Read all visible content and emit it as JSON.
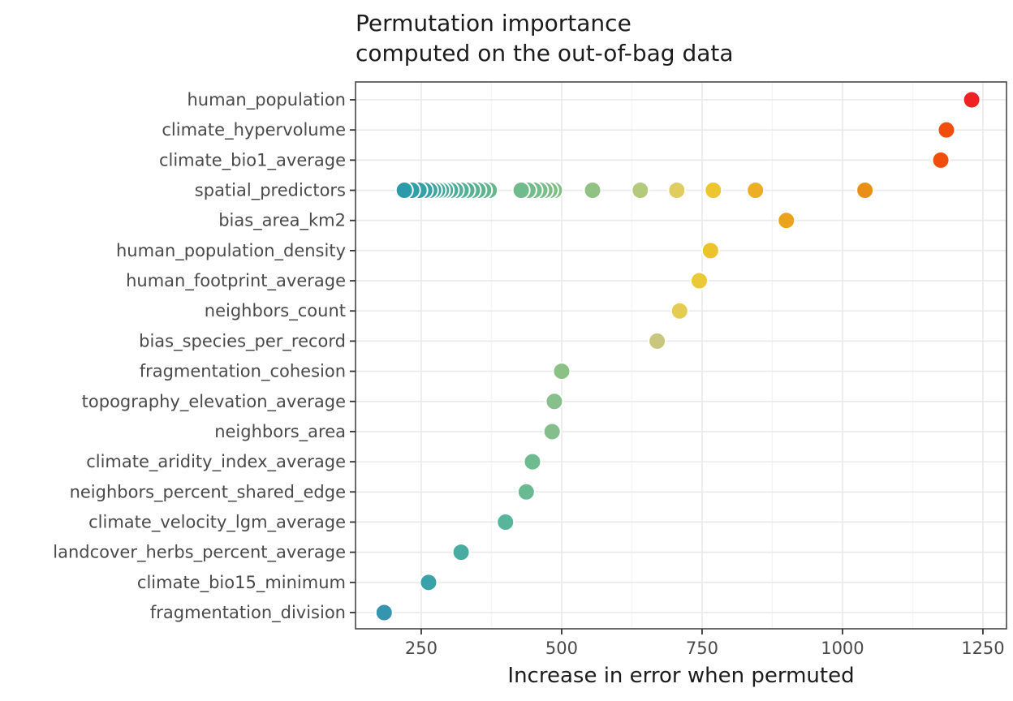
{
  "title": {
    "line1": "Permutation importance",
    "line2": "computed on the out-of-bag data"
  },
  "chart_data": {
    "type": "scatter",
    "subtype": "horizontal-dot-plot",
    "title": "Permutation importance computed on the out-of-bag data",
    "xlabel": "Increase in error when permuted",
    "ylabel": "",
    "xlim": [
      133,
      1292
    ],
    "x_major_ticks": [
      250,
      500,
      750,
      1000,
      1250
    ],
    "x_minor_gridlines": [
      375,
      625,
      875,
      1125
    ],
    "grid": "major-and-minor-vertical, major-horizontal",
    "legend": "none",
    "color_encoding": "importance value (teal = low, red = high)",
    "categories": [
      "human_population",
      "climate_hypervolume",
      "climate_bio1_average",
      "spatial_predictors",
      "bias_area_km2",
      "human_population_density",
      "human_footprint_average",
      "neighbors_count",
      "bias_species_per_record",
      "fragmentation_cohesion",
      "topography_elevation_average",
      "neighbors_area",
      "climate_aridity_index_average",
      "neighbors_percent_shared_edge",
      "climate_velocity_lgm_average",
      "landcover_herbs_percent_average",
      "climate_bio15_minimum",
      "fragmentation_division"
    ],
    "points": [
      {
        "category": "human_population",
        "x": 1230,
        "color": "#ee2123"
      },
      {
        "category": "climate_hypervolume",
        "x": 1185,
        "color": "#f14e0e"
      },
      {
        "category": "climate_bio1_average",
        "x": 1175,
        "color": "#f14e0e"
      },
      {
        "category": "spatial_predictors",
        "x": 1040,
        "color": "#e88f15"
      },
      {
        "category": "spatial_predictors",
        "x": 845,
        "color": "#ecaf24"
      },
      {
        "category": "spatial_predictors",
        "x": 770,
        "color": "#edc52f"
      },
      {
        "category": "spatial_predictors",
        "x": 705,
        "color": "#dfcd62"
      },
      {
        "category": "spatial_predictors",
        "x": 640,
        "color": "#b3ca7c"
      },
      {
        "category": "spatial_predictors",
        "x": 555,
        "color": "#90c383"
      },
      {
        "category": "spatial_predictors",
        "x": 487,
        "color": "#80bf84"
      },
      {
        "category": "spatial_predictors",
        "x": 479,
        "color": "#7dbf85"
      },
      {
        "category": "spatial_predictors",
        "x": 470,
        "color": "#7abe86"
      },
      {
        "category": "spatial_predictors",
        "x": 461,
        "color": "#78bd87"
      },
      {
        "category": "spatial_predictors",
        "x": 451,
        "color": "#75bd88"
      },
      {
        "category": "spatial_predictors",
        "x": 440,
        "color": "#72bc89"
      },
      {
        "category": "spatial_predictors",
        "x": 428,
        "color": "#6fbb8b"
      },
      {
        "category": "spatial_predictors",
        "x": 371,
        "color": "#63b78b"
      },
      {
        "category": "spatial_predictors",
        "x": 361,
        "color": "#60b68d"
      },
      {
        "category": "spatial_predictors",
        "x": 351,
        "color": "#5cb48f"
      },
      {
        "category": "spatial_predictors",
        "x": 341,
        "color": "#59b391"
      },
      {
        "category": "spatial_predictors",
        "x": 331,
        "color": "#55b193"
      },
      {
        "category": "spatial_predictors",
        "x": 321,
        "color": "#52b095"
      },
      {
        "category": "spatial_predictors",
        "x": 311,
        "color": "#4eae97"
      },
      {
        "category": "spatial_predictors",
        "x": 302,
        "color": "#4aad99"
      },
      {
        "category": "spatial_predictors",
        "x": 293,
        "color": "#47ab9b"
      },
      {
        "category": "spatial_predictors",
        "x": 286,
        "color": "#43aa9d"
      },
      {
        "category": "spatial_predictors",
        "x": 279,
        "color": "#40a89f"
      },
      {
        "category": "spatial_predictors",
        "x": 272,
        "color": "#3ca6a1"
      },
      {
        "category": "spatial_predictors",
        "x": 265,
        "color": "#39a4a3"
      },
      {
        "category": "spatial_predictors",
        "x": 256,
        "color": "#35a2a5"
      },
      {
        "category": "spatial_predictors",
        "x": 246,
        "color": "#32a0a7"
      },
      {
        "category": "spatial_predictors",
        "x": 233,
        "color": "#2e9ea9"
      },
      {
        "category": "spatial_predictors",
        "x": 220,
        "color": "#2b9bac"
      },
      {
        "category": "bias_area_km2",
        "x": 900,
        "color": "#eba31e"
      },
      {
        "category": "human_population_density",
        "x": 765,
        "color": "#edc32b"
      },
      {
        "category": "human_footprint_average",
        "x": 745,
        "color": "#eac836"
      },
      {
        "category": "neighbors_count",
        "x": 710,
        "color": "#e4cb52"
      },
      {
        "category": "bias_species_per_record",
        "x": 670,
        "color": "#c8c77e"
      },
      {
        "category": "fragmentation_cohesion",
        "x": 500,
        "color": "#8cc186"
      },
      {
        "category": "topography_elevation_average",
        "x": 487,
        "color": "#87c08a"
      },
      {
        "category": "neighbors_area",
        "x": 483,
        "color": "#84bf8b"
      },
      {
        "category": "climate_aridity_index_average",
        "x": 448,
        "color": "#6ebb8f"
      },
      {
        "category": "neighbors_percent_shared_edge",
        "x": 437,
        "color": "#69ba91"
      },
      {
        "category": "climate_velocity_lgm_average",
        "x": 400,
        "color": "#58b59b"
      },
      {
        "category": "landcover_herbs_percent_average",
        "x": 321,
        "color": "#49aca0"
      },
      {
        "category": "climate_bio15_minimum",
        "x": 263,
        "color": "#38a2a8"
      },
      {
        "category": "fragmentation_division",
        "x": 184,
        "color": "#3594ae"
      }
    ]
  },
  "style_colors": {
    "panel_border": "#474747",
    "grid_major": "#e9e9e9",
    "grid_minor": "#f4f4f4",
    "tick_mark": "#333333",
    "axis_text": "#4a4a4a",
    "title_text": "#1c1c1c",
    "point_stroke": "#ffffff"
  }
}
